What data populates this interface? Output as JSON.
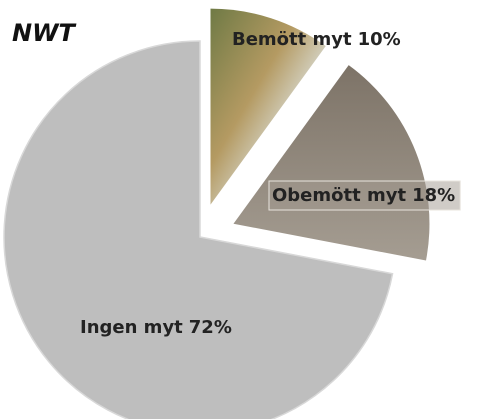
{
  "chart_data": {
    "type": "pie",
    "title": "NWT",
    "categories": [
      "Bemött myt",
      "Obemött myt",
      "Ingen myt"
    ],
    "values": [
      10,
      18,
      72
    ],
    "value_labels": [
      "10%",
      "18%",
      "72%"
    ],
    "colors": [
      "#8a8f5e",
      "#8d8478",
      "#bebebe"
    ]
  }
}
